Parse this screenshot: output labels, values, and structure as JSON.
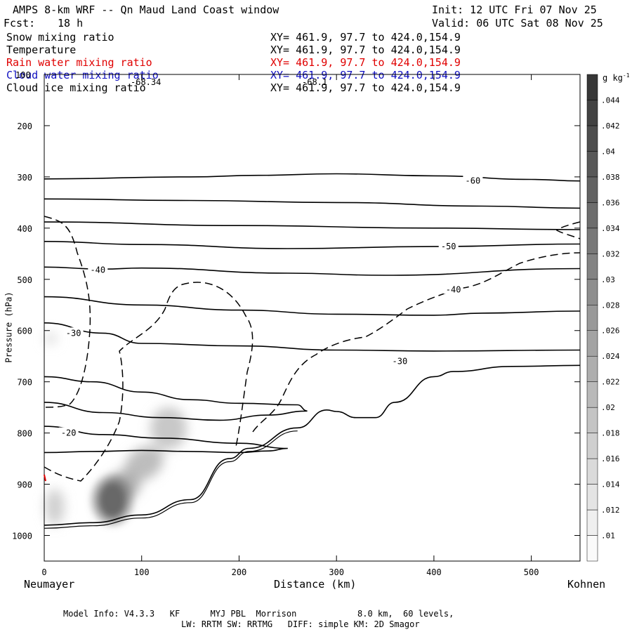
{
  "header": {
    "title": "AMPS 8-km WRF -- Qn Maud Land Coast window",
    "init": "Init: 12 UTC Fri 07 Nov 25",
    "fcst_label": "Fcst:",
    "fcst_value": "18 h",
    "valid": "Valid: 06 UTC Sat 08 Nov 25"
  },
  "fields": [
    {
      "name": "Snow mixing ratio",
      "xy": "XY= 461.9, 97.7 to 424.0,154.9",
      "color": "#000000"
    },
    {
      "name": "Temperature",
      "xy": "XY= 461.9, 97.7 to 424.0,154.9",
      "color": "#000000"
    },
    {
      "name": "Rain water mixing ratio",
      "xy": "XY= 461.9, 97.7 to 424.0,154.9",
      "color": "#e00000"
    },
    {
      "name": "Cloud water mixing ratio",
      "xy": "XY= 461.9, 97.7 to 424.0,154.9",
      "color": "#1010c0"
    },
    {
      "name": "Cloud ice mixing ratio",
      "xy": "XY= 461.9, 97.7 to 424.0,154.9",
      "color": "#000000"
    }
  ],
  "footer": {
    "line1": "Model Info: V4.3.3   KF      MYJ PBL  Morrison            8.0 km,  60 levels,",
    "line2": "LW: RRTM SW: RRTMG   DIFF: simple KM: 2D Smagor"
  },
  "chart_data": {
    "type": "cross-section",
    "xlabel": "Distance (km)",
    "ylabel": "Pressure (hPa)",
    "x_left_label": "Neumayer",
    "x_right_label": "Kohnen",
    "xlim": [
      0,
      550
    ],
    "ylim": [
      1050,
      100
    ],
    "x_ticks": [
      0,
      100,
      200,
      300,
      400,
      500
    ],
    "y_ticks": [
      100,
      200,
      300,
      400,
      500,
      600,
      700,
      800,
      900,
      1000
    ],
    "colorbar": {
      "unit": "g kg",
      "unit_exp": "-1",
      "labels": [
        ".01",
        ".012",
        ".014",
        ".016",
        ".018",
        ".02",
        ".022",
        ".024",
        ".026",
        ".028",
        ".03",
        ".032",
        ".034",
        ".036",
        ".038",
        ".04",
        ".042",
        ".044"
      ],
      "max": 0.046
    },
    "annotations": [
      "-68.34",
      "-68.1"
    ],
    "temperature_contours": [
      {
        "label": "-60",
        "label_at": [
          440,
          308
        ],
        "points": [
          [
            0,
            304
          ],
          [
            150,
            300
          ],
          [
            220,
            297
          ],
          [
            300,
            294
          ],
          [
            400,
            298
          ],
          [
            500,
            305
          ],
          [
            550,
            308
          ]
        ]
      },
      {
        "label": "",
        "points": [
          [
            0,
            343
          ],
          [
            150,
            346
          ],
          [
            300,
            350
          ],
          [
            450,
            357
          ],
          [
            550,
            361
          ]
        ]
      },
      {
        "label": "",
        "points": [
          [
            0,
            388
          ],
          [
            200,
            395
          ],
          [
            400,
            400
          ],
          [
            550,
            403
          ]
        ]
      },
      {
        "label": "-50",
        "label_at": [
          415,
          436
        ],
        "points": [
          [
            0,
            426
          ],
          [
            100,
            432
          ],
          [
            250,
            440
          ],
          [
            400,
            436
          ],
          [
            550,
            431
          ]
        ]
      },
      {
        "label": "-40",
        "label_at": [
          55,
          482
        ],
        "points": [
          [
            0,
            476
          ],
          [
            60,
            480
          ],
          [
            100,
            478
          ],
          [
            250,
            488
          ],
          [
            350,
            492
          ],
          [
            550,
            479
          ]
        ]
      },
      {
        "label": "-40",
        "label_at": [
          420,
          520
        ],
        "points": [
          [
            0,
            534
          ],
          [
            100,
            550
          ],
          [
            200,
            560
          ],
          [
            300,
            568
          ],
          [
            400,
            570
          ],
          [
            450,
            566
          ],
          [
            550,
            562
          ]
        ]
      },
      {
        "label": "-30",
        "label_at": [
          30,
          605
        ],
        "points": [
          [
            0,
            585
          ],
          [
            60,
            605
          ],
          [
            100,
            625
          ],
          [
            200,
            630
          ],
          [
            300,
            638
          ],
          [
            400,
            640
          ],
          [
            550,
            638
          ]
        ]
      },
      {
        "label": "-30",
        "label_at": [
          365,
          660
        ],
        "points": [
          [
            0,
            690
          ],
          [
            50,
            700
          ],
          [
            100,
            720
          ],
          [
            150,
            735
          ],
          [
            200,
            742
          ],
          [
            260,
            745
          ],
          [
            270,
            757
          ],
          [
            230,
            765
          ],
          [
            180,
            775
          ],
          [
            120,
            770
          ],
          [
            60,
            760
          ],
          [
            0,
            740
          ]
        ]
      },
      {
        "label": "-20",
        "label_at": [
          25,
          800
        ],
        "points": [
          [
            0,
            787
          ],
          [
            60,
            803
          ],
          [
            120,
            810
          ],
          [
            200,
            820
          ],
          [
            250,
            830
          ],
          [
            230,
            835
          ],
          [
            200,
            838
          ],
          [
            150,
            836
          ],
          [
            100,
            834
          ],
          [
            50,
            836
          ],
          [
            0,
            838
          ]
        ]
      }
    ],
    "terrain_km": [
      [
        0,
        980
      ],
      [
        50,
        975
      ],
      [
        100,
        960
      ],
      [
        150,
        930
      ],
      [
        190,
        850
      ],
      [
        210,
        830
      ],
      [
        260,
        790
      ],
      [
        290,
        755
      ],
      [
        300,
        758
      ],
      [
        320,
        770
      ],
      [
        340,
        770
      ],
      [
        360,
        740
      ],
      [
        400,
        690
      ],
      [
        420,
        680
      ],
      [
        480,
        670
      ],
      [
        550,
        668
      ]
    ],
    "snow_max": {
      "x": 75,
      "p": 930,
      "value": 0.046
    }
  }
}
